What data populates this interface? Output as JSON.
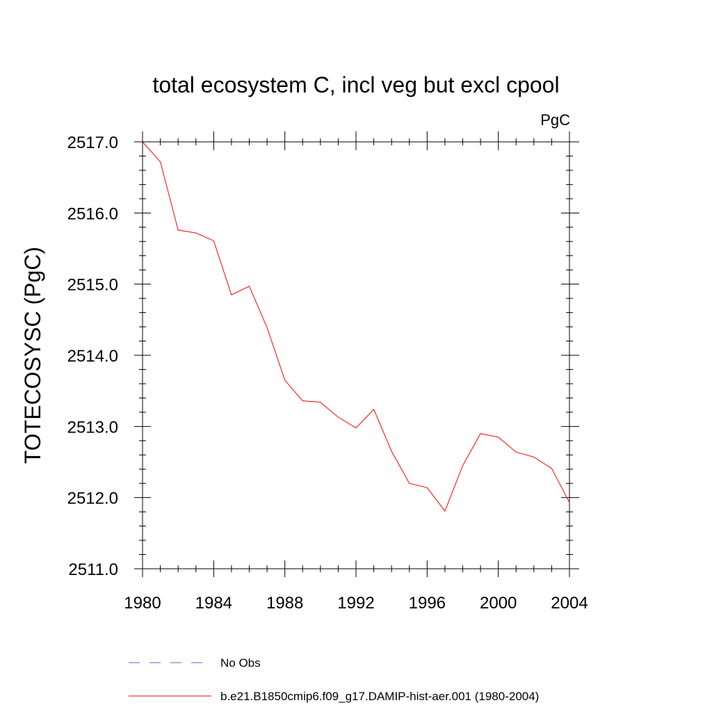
{
  "chart_data": {
    "type": "line",
    "title": "total ecosystem C, incl veg but excl cpool",
    "units": "PgC",
    "xlabel": "",
    "ylabel": "TOTECOSYSC  (PgC)",
    "xlim": [
      1980,
      2004
    ],
    "ylim": [
      2511.0,
      2517.0
    ],
    "xticks": [
      1980,
      1984,
      1988,
      1992,
      1996,
      2000,
      2004
    ],
    "xtick_labels": [
      "1980",
      "1984",
      "1988",
      "1992",
      "1996",
      "2000",
      "2004"
    ],
    "yticks": [
      2511.0,
      2512.0,
      2513.0,
      2514.0,
      2515.0,
      2516.0,
      2517.0
    ],
    "ytick_labels": [
      "2511.0",
      "2512.0",
      "2513.0",
      "2514.0",
      "2515.0",
      "2516.0",
      "2517.0"
    ],
    "grid": false,
    "legend_position": "bottom",
    "series": [
      {
        "name": "b.e21.B1850cmip6.f09_g17.DAMIP-hist-aer.001 (1980-2004)",
        "color": "#ff0000",
        "dash": "solid",
        "x": [
          1980,
          1981,
          1982,
          1983,
          1984,
          1985,
          1986,
          1987,
          1988,
          1989,
          1990,
          1991,
          1992,
          1993,
          1994,
          1995,
          1996,
          1997,
          1998,
          1999,
          2000,
          2001,
          2002,
          2003,
          2004
        ],
        "y": [
          2517.0,
          2516.72,
          2515.76,
          2515.72,
          2515.61,
          2514.85,
          2514.97,
          2514.39,
          2513.65,
          2513.36,
          2513.34,
          2513.13,
          2512.98,
          2513.24,
          2512.65,
          2512.2,
          2512.14,
          2511.81,
          2512.45,
          2512.9,
          2512.85,
          2512.64,
          2512.57,
          2512.41,
          2511.93
        ]
      }
    ],
    "legend": [
      {
        "label": "No Obs",
        "color": "#6a5acd",
        "dash": "dashed"
      },
      {
        "label": "b.e21.B1850cmip6.f09_g17.DAMIP-hist-aer.001 (1980-2004)",
        "color": "#ff0000",
        "dash": "solid"
      }
    ]
  }
}
